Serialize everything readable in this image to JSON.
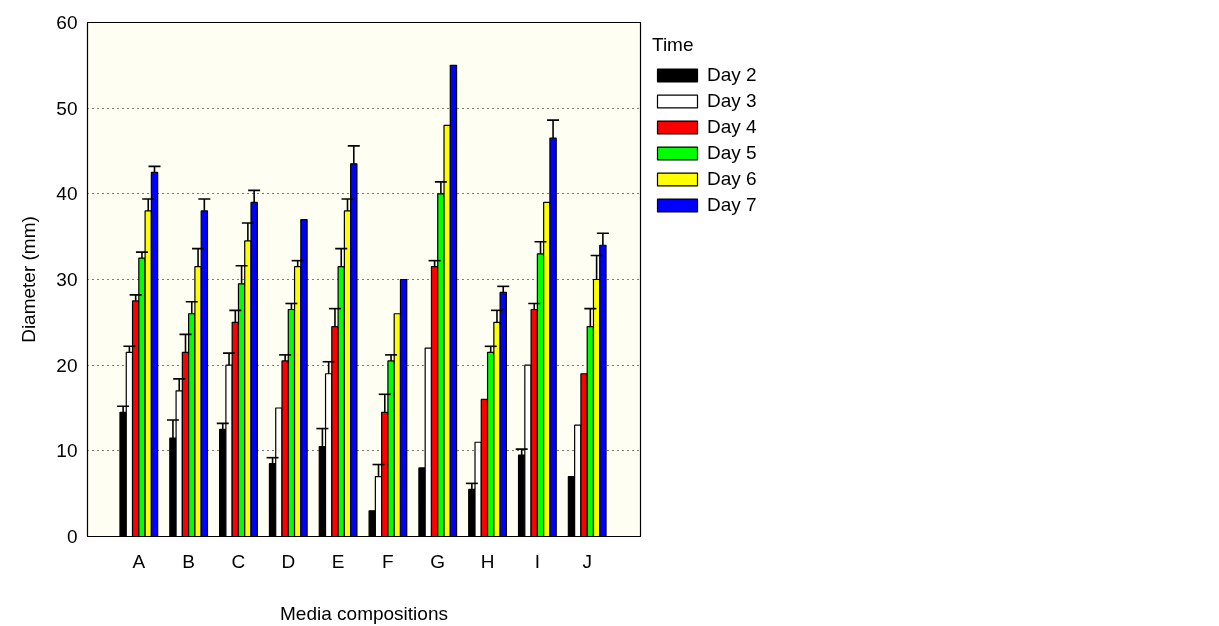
{
  "chart_data": {
    "type": "bar",
    "xlabel": "Media compositions",
    "ylabel": "Diameter (mm)",
    "legend_title": "Time",
    "categories": [
      "A",
      "B",
      "C",
      "D",
      "E",
      "F",
      "G",
      "H",
      "I",
      "J"
    ],
    "series": [
      {
        "name": "Day 2",
        "color": "#000000",
        "values": [
          14.5,
          11.5,
          12.5,
          8.5,
          10.5,
          3,
          8,
          5.5,
          9.5,
          7
        ],
        "errors": [
          [
            14.5,
            15.2
          ],
          [
            11.5,
            13.6
          ],
          [
            12.5,
            13.2
          ],
          [
            8.5,
            9.2
          ],
          [
            10.5,
            12.6
          ],
          null,
          null,
          [
            5.5,
            6.2
          ],
          [
            9.5,
            10.2
          ],
          null
        ]
      },
      {
        "name": "Day 3",
        "color": "#ffffff",
        "values": [
          21.5,
          17,
          20,
          15,
          19,
          7,
          22,
          11,
          20,
          13
        ],
        "errors": [
          [
            21.5,
            22.2
          ],
          [
            17,
            18.4
          ],
          [
            20,
            21.4
          ],
          null,
          [
            19,
            20.4
          ],
          [
            7,
            8.4
          ],
          null,
          null,
          null,
          null
        ]
      },
      {
        "name": "Day 4",
        "color": "#ff0000",
        "values": [
          27.5,
          21.5,
          25,
          20.5,
          24.5,
          14.5,
          31.5,
          16,
          26.5,
          19
        ],
        "errors": [
          [
            27.5,
            28.2
          ],
          [
            21.5,
            23.6
          ],
          [
            25,
            26.4
          ],
          [
            20.5,
            21.2
          ],
          [
            24.5,
            26.6
          ],
          [
            14.5,
            16.6
          ],
          [
            31.5,
            32.2
          ],
          null,
          [
            26.5,
            27.2
          ],
          null
        ]
      },
      {
        "name": "Day 5",
        "color": "#00ff00",
        "values": [
          32.5,
          26,
          29.5,
          26.5,
          31.5,
          20.5,
          40,
          21.5,
          33,
          24.5
        ],
        "errors": [
          [
            32.5,
            33.2
          ],
          [
            26,
            27.4
          ],
          [
            29.5,
            31.6
          ],
          [
            26.5,
            27.2
          ],
          [
            31.5,
            33.6
          ],
          [
            20.5,
            21.2
          ],
          [
            40,
            41.4
          ],
          [
            21.5,
            22.2
          ],
          [
            33,
            34.4
          ],
          [
            24.5,
            26.6
          ]
        ]
      },
      {
        "name": "Day 6",
        "color": "#ffff00",
        "values": [
          38,
          31.5,
          34.5,
          31.5,
          38,
          26,
          48,
          25,
          39,
          30
        ],
        "errors": [
          [
            38,
            39.4
          ],
          [
            31.5,
            33.6
          ],
          [
            34.5,
            36.6
          ],
          [
            31.5,
            32.2
          ],
          [
            38,
            39.4
          ],
          null,
          null,
          [
            25,
            26.4
          ],
          null,
          [
            30,
            32.8
          ]
        ]
      },
      {
        "name": "Day 7",
        "color": "#0000ff",
        "values": [
          42.5,
          38,
          39,
          37,
          43.5,
          30,
          55,
          28.5,
          46.5,
          34
        ],
        "errors": [
          [
            42.5,
            43.2
          ],
          [
            38,
            39.4
          ],
          [
            39,
            40.4
          ],
          null,
          [
            43.5,
            45.6
          ],
          null,
          null,
          [
            28.5,
            29.2
          ],
          [
            46.5,
            48.6
          ],
          [
            34,
            35.4
          ]
        ]
      }
    ],
    "ylim": [
      0,
      60
    ],
    "yticks": [
      0,
      10,
      20,
      30,
      40,
      50,
      60
    ],
    "grid": "y",
    "legend": "top right"
  }
}
